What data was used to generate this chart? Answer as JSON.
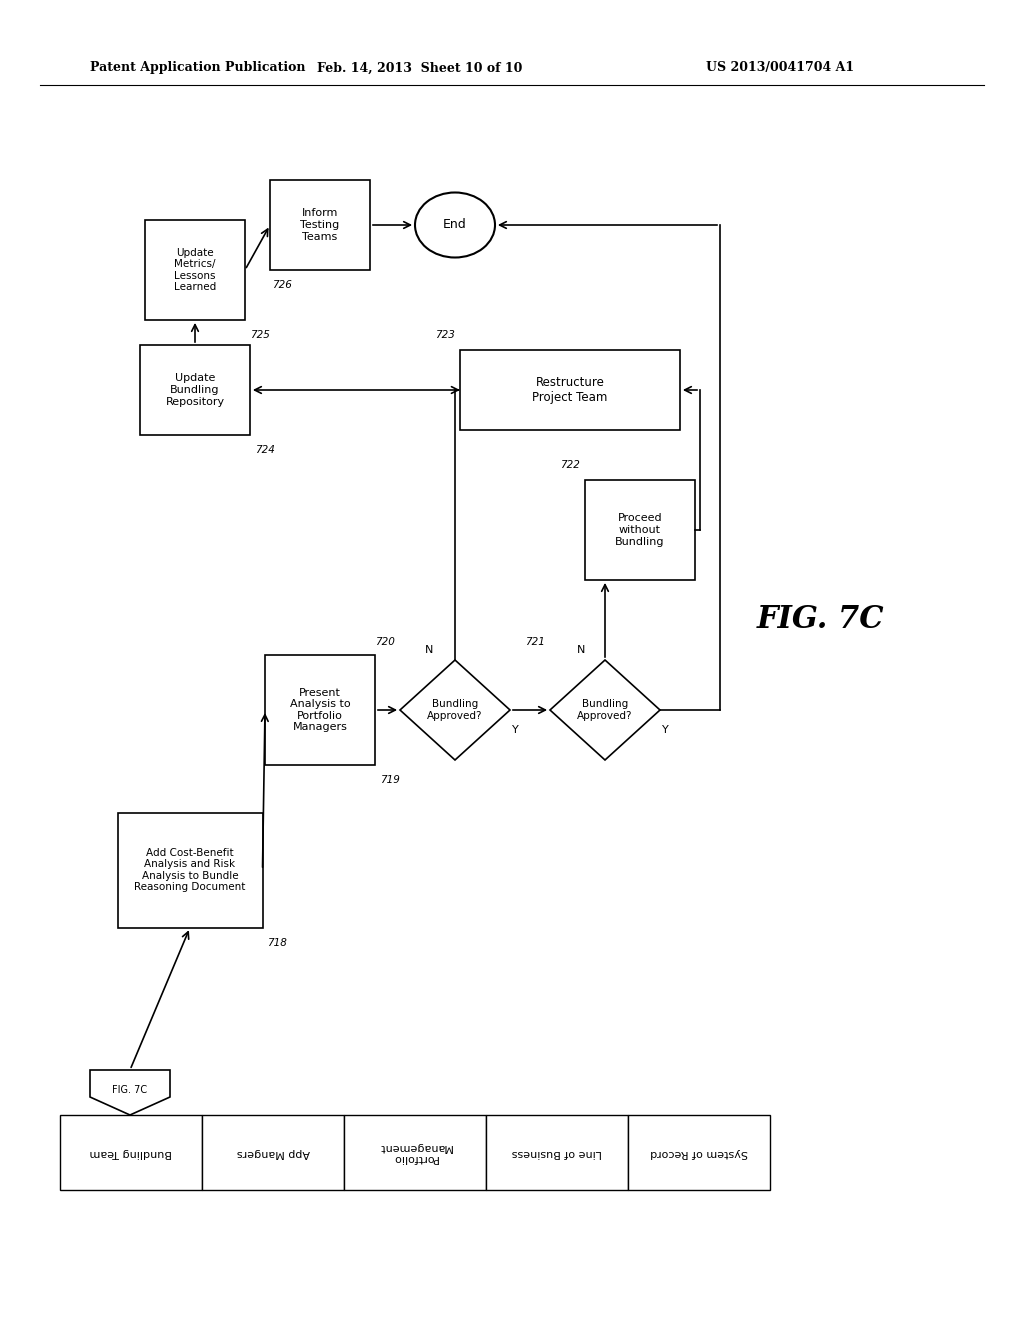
{
  "header_left": "Patent Application Publication",
  "header_mid": "Feb. 14, 2013  Sheet 10 of 10",
  "header_right": "US 2013/0041704 A1",
  "fig_label": "FIG. 7C",
  "bg_color": "#ffffff",
  "line_color": "#000000",
  "swimlane_labels": [
    "Bundling Team",
    "App Mangers",
    "Portfolio\nManagement",
    "Line of Business",
    "System of Record"
  ]
}
